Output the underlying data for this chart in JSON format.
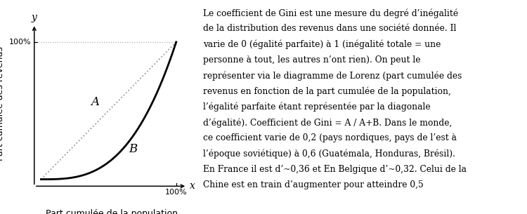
{
  "ylabel": "Part cumulée des revenus",
  "xlabel": "Part cumulée de la population",
  "x_axis_label": "x",
  "y_axis_label": "y",
  "tick_100_label": "100%",
  "label_A": "A",
  "label_B": "B",
  "lorenz_exponent": 3.0,
  "line_color": "#000000",
  "diagonal_color": "#999999",
  "bg_color": "#ffffff",
  "hline_color": "#aaaaaa",
  "text_lines": [
    "Le coefficient de Gini est une mesure du degré d’inégalité",
    "de la distribution des revenus dans une société donnée. Il",
    "varie de 0 (égalité parfaite) à 1 (inégalité totale = une",
    "personne à tout, les autres n’ont rien). On peut le",
    "représenter via le diagramme de Lorenz (part cumulée des",
    "revenus en fonction de la part cumulée de la population,",
    "l’égalité parfaite étant représentée par la diagonale",
    "d’égalité). Coefficient de Gini = A / A+B. Dans le monde,",
    "ce coefficient varie de 0,2 (pays nordiques, pays de l’est à",
    "l’époque soviétique) à 0,6 (Guatémala, Honduras, Brésil).",
    "En France il est d’~0,36 et En Belgique d’~0,32. Celui de la",
    "Chine est en train d’augmenter pour atteindre 0,5"
  ],
  "text_fontsize": 8.8,
  "label_fontsize": 9,
  "axis_label_fontsize": 9,
  "tick_fontsize": 8
}
